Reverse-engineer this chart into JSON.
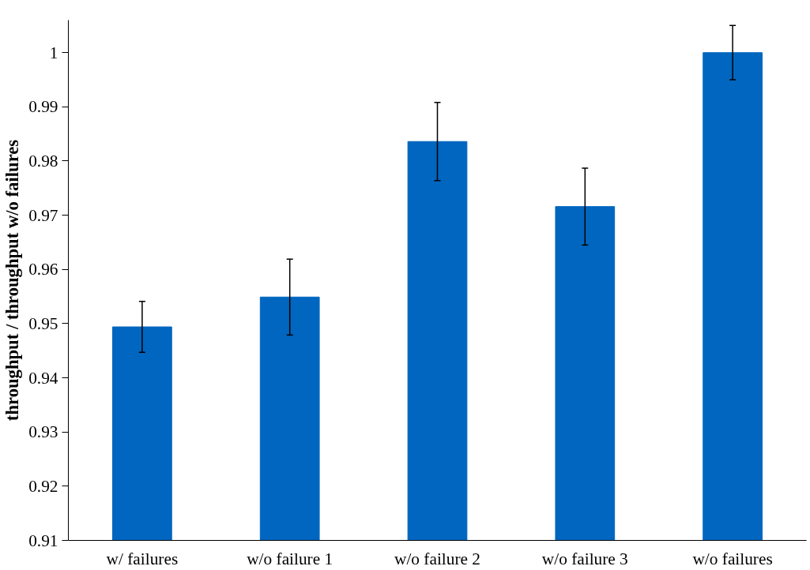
{
  "chart_data": {
    "type": "bar",
    "ylabel": "throughput / throughput w/o failures",
    "categories": [
      "w/ failures",
      "w/o failure 1",
      "w/o failure 2",
      "w/o failure 3",
      "w/o failures"
    ],
    "values": [
      0.9494,
      0.9549,
      0.9836,
      0.9716,
      1.0
    ],
    "errors": [
      0.0047,
      0.007,
      0.0072,
      0.0071,
      0.005
    ],
    "color": "#0066bf",
    "ylim": [
      0.91,
      1.006
    ],
    "yticks": [
      0.91,
      0.92,
      0.93,
      0.94,
      0.95,
      0.96,
      0.97,
      0.98,
      0.99,
      1
    ],
    "grid": false
  }
}
